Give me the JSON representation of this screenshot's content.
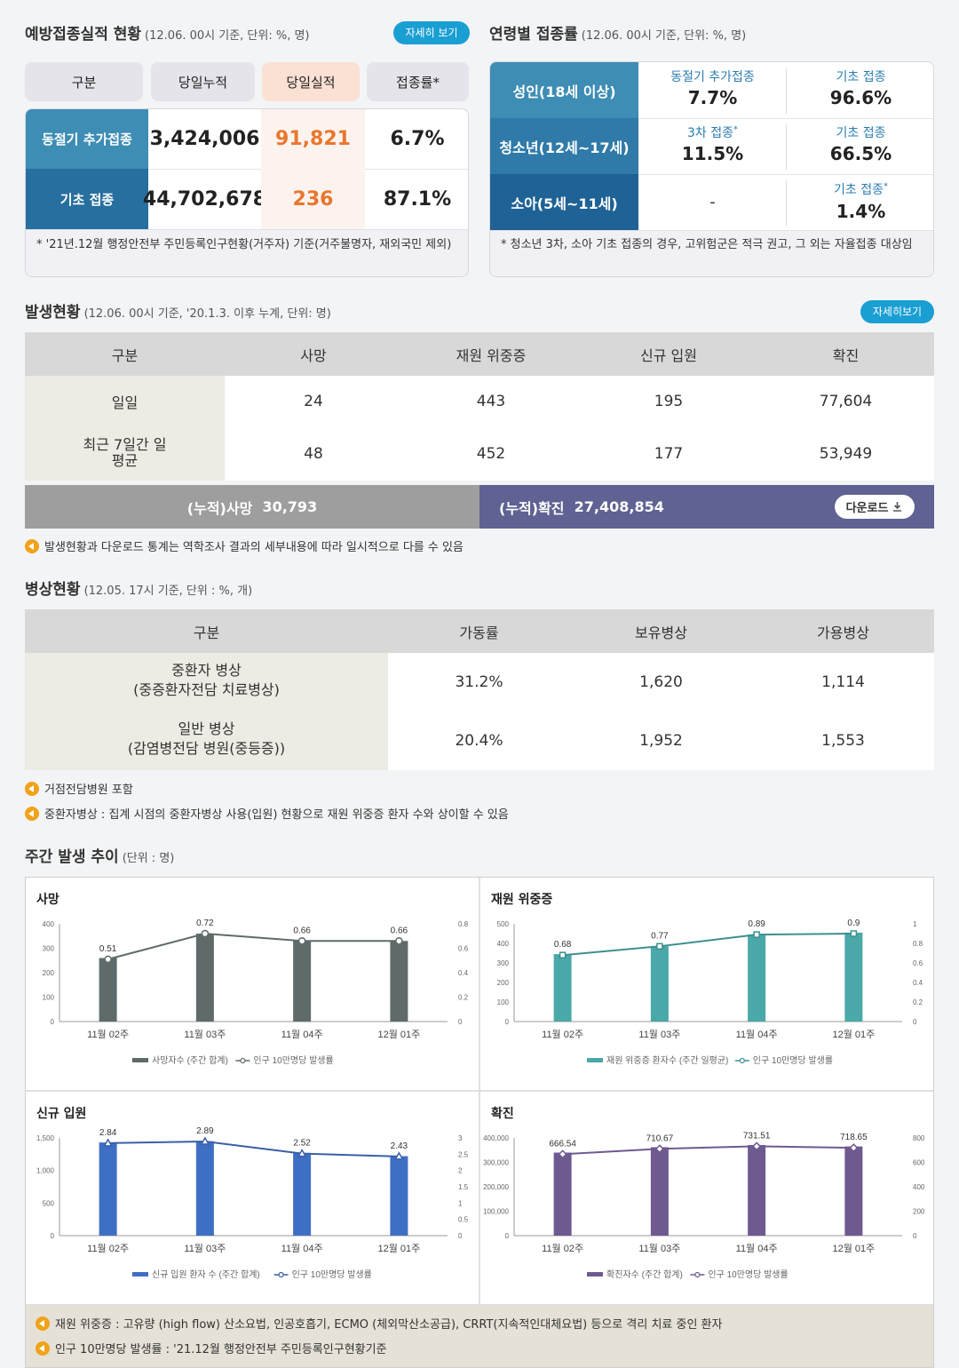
{
  "vaccination": {
    "title": "예방접종실적 현황",
    "subtitle": "(12.06. 00시 기준, 단위: %, 명)",
    "detail_button": "자세히 보기",
    "headers": [
      "구분",
      "당일누적",
      "당일실적",
      "접종률*"
    ],
    "rows": [
      {
        "label": "동절기 추가접종",
        "cumulative": "3,424,006",
        "daily": "91,821",
        "rate": "6.7%"
      },
      {
        "label": "기초 접종",
        "cumulative": "44,702,678",
        "daily": "236",
        "rate": "87.1%"
      }
    ],
    "footnote": "* '21년.12월 행정안전부 주민등록인구현황(거주자) 기준(거주불명자, 재외국민 제외)"
  },
  "age_rate": {
    "title": "연령별 접종률",
    "subtitle": "(12.06. 00시 기준, 단위: %, 명)",
    "rows": [
      {
        "group": "성인(18세 이상)",
        "c1_label": "동절기 추가접종",
        "c1_value": "7.7%",
        "c2_label": "기초 접종",
        "c2_value": "96.6%"
      },
      {
        "group": "청소년(12세~17세)",
        "c1_label": "3차 접종",
        "c1_value": "11.5%",
        "c2_label": "기초 접종",
        "c2_value": "66.5%"
      },
      {
        "group": "소아(5세~11세)",
        "c1_label": "",
        "c1_value": "-",
        "c2_label": "기초 접종",
        "c2_value": "1.4%"
      }
    ],
    "footnote": "* 청소년 3차, 소아 기초 접종의 경우, 고위험군은 적극 권고, 그 외는 자율접종 대상임"
  },
  "occurrence": {
    "title": "발생현황",
    "subtitle": "(12.06. 00시 기준, '20.1.3. 이후 누계, 단위: 명)",
    "detail_button": "자세히보기",
    "headers": [
      "구분",
      "사망",
      "재원 위중증",
      "신규 입원",
      "확진"
    ],
    "rows": [
      {
        "label": "일일",
        "death": "24",
        "severe": "443",
        "admit": "195",
        "confirmed": "77,604"
      },
      {
        "label": "최근 7일간 일평균",
        "death": "48",
        "severe": "452",
        "admit": "177",
        "confirmed": "53,949"
      }
    ],
    "cum_death_label": "(누적)사망",
    "cum_death_value": "30,793",
    "cum_confirmed_label": "(누적)확진",
    "cum_confirmed_value": "27,408,854",
    "download_label": "다운로드",
    "note": "발생현황과 다운로드 통계는 역학조사 결과의 세부내용에 따라 일시적으로 다를 수 있음"
  },
  "beds": {
    "title": "병상현황",
    "subtitle": "(12.05. 17시 기준, 단위 : %, 개)",
    "headers": [
      "구분",
      "가동률",
      "보유병상",
      "가용병상"
    ],
    "rows": [
      {
        "label1": "중환자 병상",
        "label2": "(중증환자전담 치료병상)",
        "rate": "31.2%",
        "owned": "1,620",
        "avail": "1,114"
      },
      {
        "label1": "일반 병상",
        "label2": "(감염병전담 병원(중등증))",
        "rate": "20.4%",
        "owned": "1,952",
        "avail": "1,553"
      }
    ],
    "notes": [
      "거점전담병원 포함",
      "중환자병상 : 집계 시점의 중환자병상 사용(입원) 현황으로 재원 위중증 환자 수와 상이할 수 있음"
    ]
  },
  "weekly": {
    "title": "주간 발생 추이",
    "subtitle": "(단위 : 명)",
    "notes": [
      "재원 위중증 : 고유량 (high flow) 산소요법, 인공호흡기, ECMO (체외막산소공급), CRRT(지속적인대체요법) 등으로 격리 치료 중인 환자",
      "인구 10만명당 발생률 : '21.12월 행정안전부 주민등록인구현황기준"
    ]
  },
  "chart_data": [
    {
      "type": "bar",
      "title": "사망",
      "categories": [
        "11월 02주",
        "11월 03주",
        "11월 04주",
        "12월 01주"
      ],
      "series": [
        {
          "name": "사망자수 (주간 합계)",
          "values": [
            260,
            360,
            330,
            330
          ],
          "color": "#5f6b6b"
        },
        {
          "name": "인구 10만명당 발생률",
          "values": [
            0.51,
            0.72,
            0.66,
            0.66
          ],
          "axis": "right",
          "marker": "circle"
        }
      ],
      "ylim": [
        0,
        400
      ],
      "yticks": [
        "0",
        "100",
        "200",
        "300",
        "400"
      ],
      "y2lim": [
        0,
        0.8
      ],
      "y2ticks": [
        "0",
        "0.2",
        "0.4",
        "0.6",
        "0.8"
      ],
      "labels": [
        "0.51",
        "0.72",
        "0.66",
        "0.66"
      ],
      "line_color": "#5f6b6b"
    },
    {
      "type": "bar",
      "title": "재원 위중증",
      "categories": [
        "11월 02주",
        "11월 03주",
        "11월 04주",
        "12월 01주"
      ],
      "series": [
        {
          "name": "재원 위중증 환자수 (주간 일평균)",
          "values": [
            345,
            385,
            445,
            455
          ],
          "color": "#4aa8a8"
        },
        {
          "name": "인구 10만명당 발생률",
          "values": [
            0.68,
            0.77,
            0.89,
            0.9
          ],
          "axis": "right",
          "marker": "square"
        }
      ],
      "ylim": [
        0,
        500
      ],
      "yticks": [
        "0",
        "100",
        "200",
        "300",
        "400",
        "500"
      ],
      "y2lim": [
        0,
        1
      ],
      "y2ticks": [
        "0",
        "0.2",
        "0.4",
        "0.6",
        "0.8",
        "1"
      ],
      "labels": [
        "0.68",
        "0.77",
        "0.89",
        "0.9"
      ],
      "line_color": "#3f8f8f"
    },
    {
      "type": "bar",
      "title": "신규 입원",
      "categories": [
        "11월 02주",
        "11월 03주",
        "11월 04주",
        "12월 01주"
      ],
      "series": [
        {
          "name": "신규 입원 환자 수 (주간 합계)",
          "values": [
            1430,
            1450,
            1270,
            1220
          ],
          "color": "#3f6fc4"
        },
        {
          "name": "인구 10만명당 발생률",
          "values": [
            2.84,
            2.89,
            2.52,
            2.43
          ],
          "axis": "right",
          "marker": "triangle"
        }
      ],
      "ylim": [
        0,
        1500
      ],
      "yticks": [
        "0",
        "500",
        "1,000",
        "1,500"
      ],
      "y2lim": [
        0,
        3
      ],
      "y2ticks": [
        "0",
        "0.5",
        "1",
        "1.5",
        "2",
        "2.5",
        "3"
      ],
      "labels": [
        "2.84",
        "2.89",
        "2.52",
        "2.43"
      ],
      "line_color": "#3a5fa8"
    },
    {
      "type": "bar",
      "title": "확진",
      "categories": [
        "11월 02주",
        "11월 03주",
        "11월 04주",
        "12월 01주"
      ],
      "series": [
        {
          "name": "확진자수 (주간 합계)",
          "values": [
            340000,
            362000,
            371000,
            365000
          ],
          "color": "#6e5a91"
        },
        {
          "name": "인구 10만명당 발생률",
          "values": [
            666.54,
            710.67,
            731.51,
            718.65
          ],
          "axis": "right",
          "marker": "diamond"
        }
      ],
      "ylim": [
        0,
        400000
      ],
      "yticks": [
        "0",
        "100,000",
        "200,000",
        "300,000",
        "400,000"
      ],
      "y2lim": [
        0,
        800
      ],
      "y2ticks": [
        "0",
        "200",
        "400",
        "600",
        "800"
      ],
      "labels": [
        "666.54",
        "710.67",
        "731.51",
        "718.65"
      ],
      "line_color": "#6e5a91"
    }
  ]
}
